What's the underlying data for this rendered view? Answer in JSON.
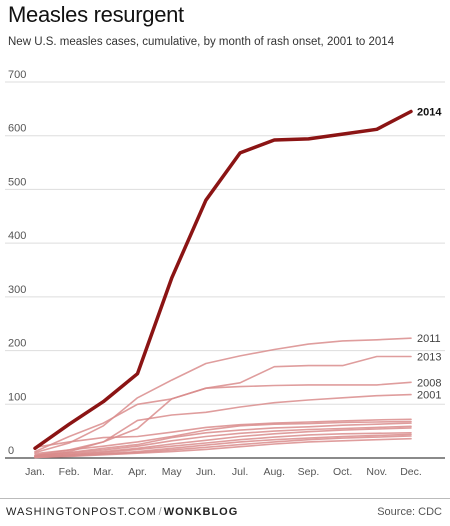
{
  "header": {
    "title": "Measles resurgent",
    "subtitle": "New U.S. measles cases, cumulative, by month of rash onset, 2001 to 2014"
  },
  "footer": {
    "site": "WASHINGTONPOST.COM",
    "section": "WONKBLOG",
    "source": "Source: CDC"
  },
  "colors": {
    "highlight": "#8b1414",
    "series": "#d98c8c",
    "grid": "#dddddd",
    "axis": "#444444"
  },
  "chart_data": {
    "type": "line",
    "title": "Measles resurgent",
    "subtitle": "New U.S. measles cases, cumulative, by month of rash onset, 2001 to 2014",
    "xlabel": "",
    "ylabel": "",
    "categories": [
      "Jan.",
      "Feb.",
      "Mar.",
      "Apr.",
      "May",
      "Jun.",
      "Jul.",
      "Aug.",
      "Sep.",
      "Oct.",
      "Nov.",
      "Dec."
    ],
    "ylim": [
      0,
      700
    ],
    "yticks": [
      0,
      100,
      200,
      300,
      400,
      500,
      600,
      700
    ],
    "grid": true,
    "series": [
      {
        "name": "2014",
        "highlight": true,
        "values": [
          18,
          63,
          105,
          157,
          335,
          480,
          568,
          592,
          594,
          603,
          612,
          645
        ]
      },
      {
        "name": "2011",
        "values": [
          10,
          28,
          60,
          112,
          145,
          176,
          190,
          202,
          212,
          218,
          220,
          223
        ]
      },
      {
        "name": "2013",
        "values": [
          5,
          15,
          30,
          55,
          110,
          130,
          140,
          170,
          172,
          172,
          189,
          189
        ]
      },
      {
        "name": "2008",
        "values": [
          12,
          40,
          65,
          100,
          110,
          130,
          133,
          135,
          136,
          136,
          136,
          141
        ]
      },
      {
        "name": "2001",
        "values": [
          3,
          12,
          30,
          70,
          80,
          85,
          95,
          103,
          108,
          112,
          116,
          118
        ]
      },
      {
        "name": "",
        "values": [
          20,
          30,
          38,
          40,
          48,
          57,
          62,
          65,
          67,
          69,
          71,
          72
        ]
      },
      {
        "name": "",
        "values": [
          8,
          15,
          22,
          30,
          40,
          52,
          60,
          63,
          64,
          66,
          67,
          68
        ]
      },
      {
        "name": "",
        "values": [
          5,
          10,
          18,
          25,
          38,
          47,
          52,
          56,
          58,
          61,
          63,
          65
        ]
      },
      {
        "name": "",
        "values": [
          4,
          9,
          15,
          22,
          32,
          40,
          46,
          50,
          53,
          55,
          57,
          59
        ]
      },
      {
        "name": "",
        "values": [
          3,
          7,
          12,
          18,
          26,
          33,
          40,
          45,
          49,
          52,
          54,
          56
        ]
      },
      {
        "name": "",
        "values": [
          2,
          6,
          10,
          16,
          22,
          28,
          34,
          39,
          43,
          45,
          46,
          47
        ]
      },
      {
        "name": "",
        "values": [
          2,
          5,
          8,
          12,
          18,
          24,
          30,
          34,
          37,
          40,
          42,
          44
        ]
      },
      {
        "name": "",
        "values": [
          1,
          4,
          7,
          10,
          15,
          20,
          25,
          30,
          34,
          37,
          39,
          41
        ]
      },
      {
        "name": "",
        "values": [
          1,
          3,
          6,
          9,
          12,
          16,
          21,
          26,
          30,
          32,
          34,
          36
        ]
      }
    ]
  }
}
